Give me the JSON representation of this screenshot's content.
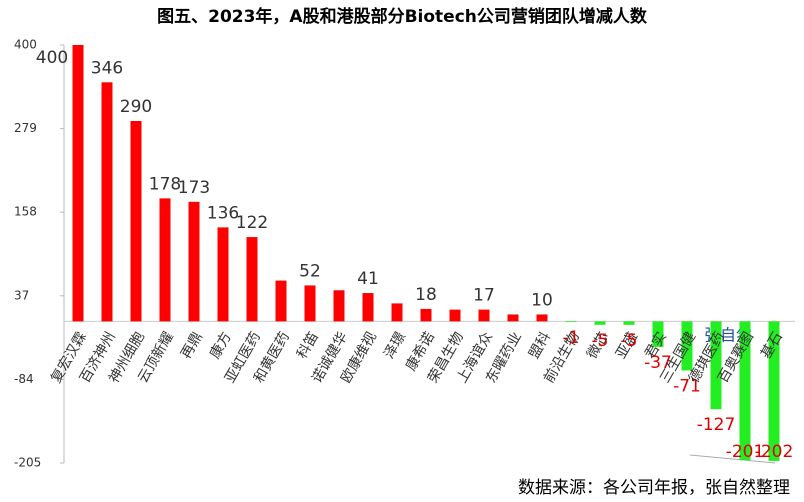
{
  "chart_data": {
    "type": "bar",
    "title": "图五、2023年，A股和港股部分Biotech公司营销团队增减人数",
    "categories": [
      "复宏汉霖",
      "百济神州",
      "神州细胞",
      "云顶新耀",
      "再鼎",
      "康方",
      "亚虹医药",
      "和黄医药",
      "科笛",
      "诺诚健华",
      "欧康维视",
      "泽璟",
      "康希诺",
      "荣昌生物",
      "上海谊众",
      "东曜药业",
      "盟科",
      "前沿生物",
      "微芯",
      "亚盛",
      "君实",
      "三生国健",
      "德琪医药",
      "百奥赛图",
      "基石"
    ],
    "values": [
      400,
      346,
      290,
      178,
      173,
      136,
      122,
      59,
      52,
      45,
      41,
      26,
      18,
      17,
      17,
      10,
      10,
      -1,
      -5,
      -5,
      -37,
      -71,
      -127,
      -201,
      -202
    ],
    "value_labels": [
      "400",
      "346",
      "290",
      "178",
      "173",
      "136",
      "122",
      null,
      "52",
      null,
      "41",
      null,
      "18",
      null,
      "17",
      null,
      "10",
      "-1",
      "-5",
      "-5",
      "-37",
      "-71",
      "-127",
      "-201",
      "-202"
    ],
    "positive_color": "#ff0000",
    "negative_color": "#22ee22",
    "ylim": [
      -205,
      400
    ],
    "yticks": [
      400,
      279,
      158,
      37,
      -84,
      -205
    ],
    "annotation": "张自然",
    "source": "数据来源：各公司年报，张自然整理"
  }
}
